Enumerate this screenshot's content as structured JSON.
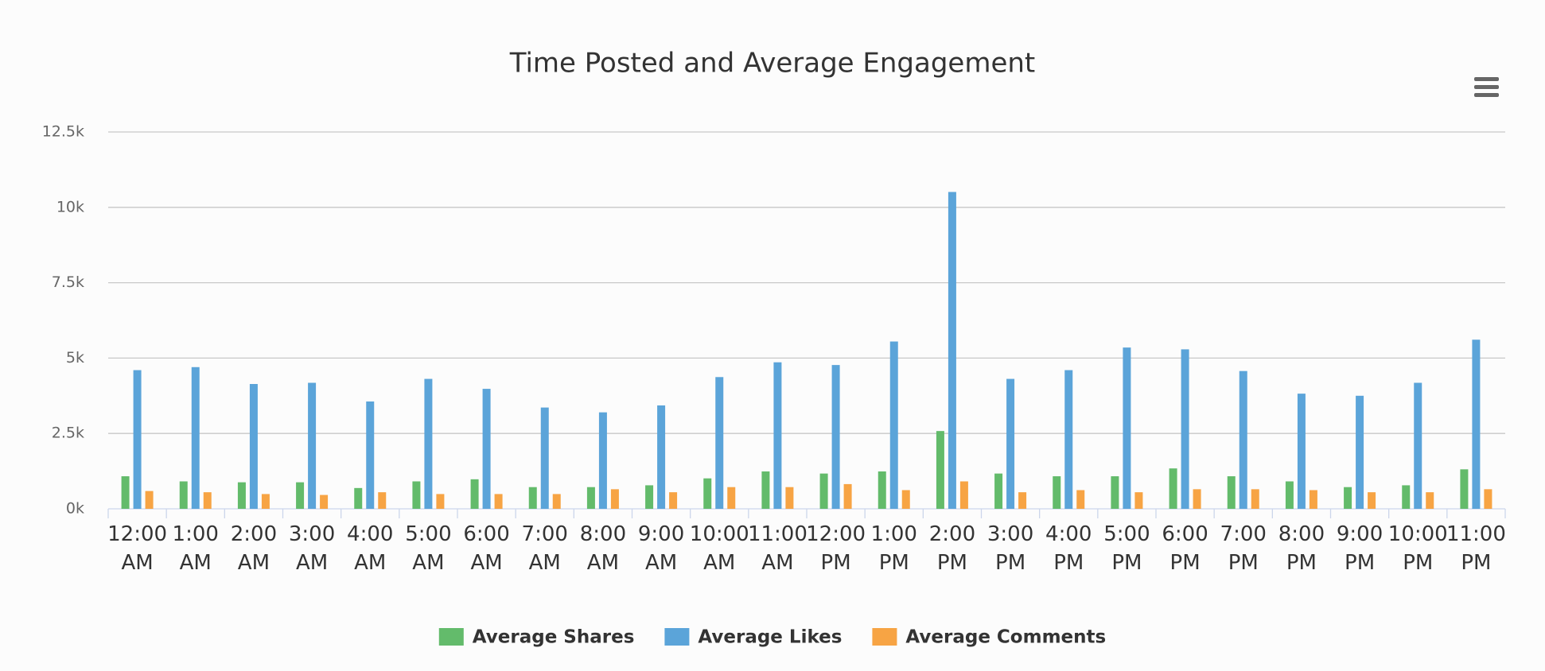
{
  "chart_data": {
    "type": "bar",
    "title": "Time Posted and Average Engagement",
    "categories": [
      "12:00 AM",
      "1:00 AM",
      "2:00 AM",
      "3:00 AM",
      "4:00 AM",
      "5:00 AM",
      "6:00 AM",
      "7:00 AM",
      "8:00 AM",
      "9:00 AM",
      "10:00 AM",
      "11:00 AM",
      "12:00 PM",
      "1:00 PM",
      "2:00 PM",
      "3:00 PM",
      "4:00 PM",
      "5:00 PM",
      "6:00 PM",
      "7:00 PM",
      "8:00 PM",
      "9:00 PM",
      "10:00 PM",
      "11:00 PM"
    ],
    "series": [
      {
        "name": "Average Shares",
        "color": "#63bb6b",
        "values": [
          1080,
          910,
          880,
          880,
          690,
          910,
          980,
          720,
          720,
          780,
          1010,
          1240,
          1170,
          1240,
          2580,
          1170,
          1080,
          1080,
          1340,
          1080,
          910,
          720,
          780,
          1310
        ]
      },
      {
        "name": "Average Likes",
        "color": "#5ba4d9",
        "values": [
          4600,
          4700,
          4140,
          4180,
          3560,
          4310,
          3980,
          3360,
          3200,
          3430,
          4370,
          4860,
          4770,
          5550,
          10510,
          4310,
          4600,
          5350,
          5290,
          4570,
          3820,
          3750,
          4180,
          5610
        ]
      },
      {
        "name": "Average Comments",
        "color": "#f7a444",
        "values": [
          590,
          550,
          490,
          460,
          550,
          490,
          490,
          490,
          650,
          550,
          720,
          720,
          820,
          620,
          910,
          550,
          620,
          550,
          650,
          650,
          620,
          550,
          550,
          650
        ]
      }
    ],
    "ylim": [
      0,
      12500
    ],
    "yticks": [
      {
        "value": 0,
        "label": "0k"
      },
      {
        "value": 2500,
        "label": "2.5k"
      },
      {
        "value": 5000,
        "label": "5k"
      },
      {
        "value": 7500,
        "label": "7.5k"
      },
      {
        "value": 10000,
        "label": "10k"
      },
      {
        "value": 12500,
        "label": "12.5k"
      }
    ],
    "grid": true,
    "legend": "bottom"
  }
}
